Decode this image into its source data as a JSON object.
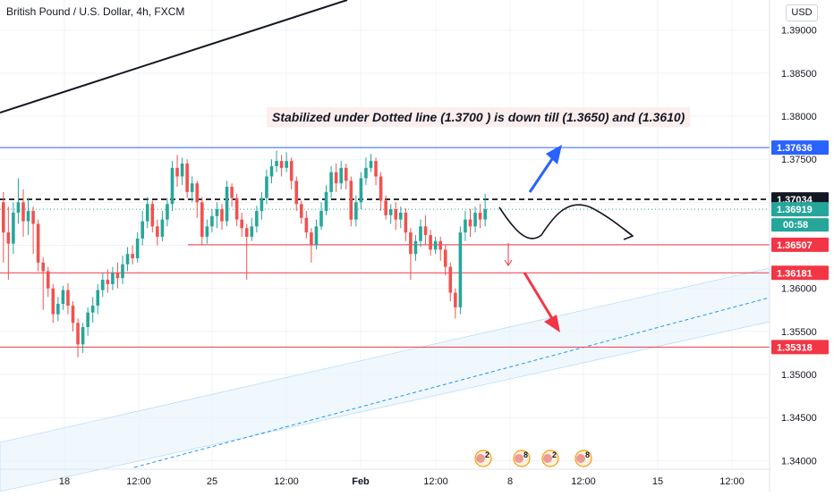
{
  "header": {
    "title": "British Pound / U.S. Dollar, 4h, FXCM",
    "currency_button": "USD"
  },
  "annotation": {
    "text": "Stabilized under Dotted line (1.3700 ) is down till (1.3650) and (1.3610)"
  },
  "colors": {
    "up": "#26a69a",
    "down": "#ef5350",
    "resistance": "#2962ff",
    "support": "#f23645",
    "arrow_blue": "#2962ff",
    "arrow_red": "#f23645",
    "channel": "#e3f2fd"
  },
  "chart_data": {
    "type": "candlestick",
    "y_axis": {
      "min": 1.339,
      "max": 1.3935,
      "ticks": [
        "1.39000",
        "1.38500",
        "1.38000",
        "1.37500",
        "1.37000",
        "1.36500",
        "1.36000",
        "1.35500",
        "1.35000",
        "1.34500",
        "1.34000"
      ]
    },
    "x_axis": {
      "ticks": [
        "18",
        "12:00",
        "25",
        "12:00",
        "Feb",
        "12:00",
        "8",
        "12:00",
        "15",
        "12:00"
      ]
    },
    "price_labels": [
      {
        "value": 1.37636,
        "text": "1.37636",
        "kind": "resistance"
      },
      {
        "value": 1.37034,
        "text": "1.37034",
        "kind": "dashed"
      },
      {
        "value": 1.36919,
        "text": "1.36919",
        "kind": "last"
      },
      {
        "value": 1.36507,
        "text": "1.36507",
        "kind": "support"
      },
      {
        "value": 1.36181,
        "text": "1.36181",
        "kind": "support"
      },
      {
        "value": 1.35318,
        "text": "1.35318",
        "kind": "support"
      }
    ],
    "countdown": "00:58",
    "horizontal_lines": [
      {
        "value": 1.37636,
        "style": "solid",
        "color": "blue"
      },
      {
        "value": 1.37034,
        "style": "dashed",
        "color": "black"
      },
      {
        "value": 1.36507,
        "style": "solid",
        "color": "red"
      },
      {
        "value": 1.36181,
        "style": "solid",
        "color": "red"
      },
      {
        "value": 1.35318,
        "style": "solid",
        "color": "red"
      }
    ],
    "candles": [
      [
        1.37,
        1.3665,
        1.363,
        1.3712
      ],
      [
        1.3665,
        1.3652,
        1.361,
        1.3695
      ],
      [
        1.3652,
        1.3688,
        1.364,
        1.37
      ],
      [
        1.3688,
        1.37,
        1.3675,
        1.3728
      ],
      [
        1.37,
        1.3678,
        1.366,
        1.3715
      ],
      [
        1.3678,
        1.369,
        1.3662,
        1.3705
      ],
      [
        1.369,
        1.3675,
        1.364,
        1.3695
      ],
      [
        1.3675,
        1.363,
        1.362,
        1.368
      ],
      [
        1.363,
        1.362,
        1.3575,
        1.3636
      ],
      [
        1.362,
        1.36,
        1.359,
        1.3625
      ],
      [
        1.36,
        1.357,
        1.356,
        1.3605
      ],
      [
        1.357,
        1.3582,
        1.3562,
        1.359
      ],
      [
        1.3582,
        1.3598,
        1.3575,
        1.3603
      ],
      [
        1.3598,
        1.358,
        1.357,
        1.3606
      ],
      [
        1.358,
        1.356,
        1.355,
        1.3585
      ],
      [
        1.356,
        1.3535,
        1.352,
        1.3565
      ],
      [
        1.3535,
        1.3555,
        1.3525,
        1.356
      ],
      [
        1.3555,
        1.3572,
        1.3545,
        1.3578
      ],
      [
        1.3572,
        1.358,
        1.356,
        1.359
      ],
      [
        1.358,
        1.3598,
        1.357,
        1.3605
      ],
      [
        1.3598,
        1.361,
        1.359,
        1.3618
      ],
      [
        1.361,
        1.3605,
        1.3595,
        1.3622
      ],
      [
        1.3605,
        1.3618,
        1.3598,
        1.3625
      ],
      [
        1.3618,
        1.3612,
        1.36,
        1.363
      ],
      [
        1.3612,
        1.3628,
        1.3605,
        1.3638
      ],
      [
        1.3628,
        1.364,
        1.362,
        1.3648
      ],
      [
        1.364,
        1.3635,
        1.3628,
        1.365
      ],
      [
        1.3635,
        1.3658,
        1.363,
        1.3665
      ],
      [
        1.3658,
        1.3678,
        1.365,
        1.369
      ],
      [
        1.3678,
        1.3698,
        1.367,
        1.3706
      ],
      [
        1.3698,
        1.3672,
        1.3665,
        1.3702
      ],
      [
        1.3672,
        1.366,
        1.365,
        1.368
      ],
      [
        1.366,
        1.368,
        1.3655,
        1.369
      ],
      [
        1.368,
        1.3698,
        1.3672,
        1.3705
      ],
      [
        1.3698,
        1.374,
        1.369,
        1.3748
      ],
      [
        1.374,
        1.373,
        1.3718,
        1.3755
      ],
      [
        1.373,
        1.3745,
        1.372,
        1.3752
      ],
      [
        1.3745,
        1.3712,
        1.3705,
        1.375
      ],
      [
        1.3712,
        1.3722,
        1.37,
        1.373
      ],
      [
        1.3722,
        1.37,
        1.3682,
        1.3725
      ],
      [
        1.37,
        1.366,
        1.365,
        1.3706
      ],
      [
        1.366,
        1.3672,
        1.3652,
        1.368
      ],
      [
        1.3672,
        1.3684,
        1.3665,
        1.3692
      ],
      [
        1.3684,
        1.3692,
        1.367,
        1.37
      ],
      [
        1.3692,
        1.3678,
        1.3668,
        1.3698
      ],
      [
        1.3678,
        1.3718,
        1.3672,
        1.3725
      ],
      [
        1.3718,
        1.3705,
        1.3695,
        1.3722
      ],
      [
        1.3705,
        1.368,
        1.3672,
        1.371
      ],
      [
        1.368,
        1.367,
        1.366,
        1.3688
      ],
      [
        1.367,
        1.366,
        1.361,
        1.3675
      ],
      [
        1.366,
        1.3672,
        1.3655,
        1.3682
      ],
      [
        1.3672,
        1.369,
        1.3665,
        1.3696
      ],
      [
        1.369,
        1.3705,
        1.368,
        1.3712
      ],
      [
        1.3705,
        1.373,
        1.3698,
        1.3738
      ],
      [
        1.373,
        1.3742,
        1.3722,
        1.375
      ],
      [
        1.3742,
        1.3748,
        1.3735,
        1.376
      ],
      [
        1.3748,
        1.374,
        1.373,
        1.3755
      ],
      [
        1.374,
        1.3748,
        1.3735,
        1.3758
      ],
      [
        1.3748,
        1.3725,
        1.3715,
        1.3752
      ],
      [
        1.3725,
        1.3698,
        1.369,
        1.373
      ],
      [
        1.3698,
        1.3682,
        1.3675,
        1.3702
      ],
      [
        1.3682,
        1.3665,
        1.3658,
        1.369
      ],
      [
        1.3665,
        1.365,
        1.363,
        1.367
      ],
      [
        1.365,
        1.3672,
        1.3645,
        1.368
      ],
      [
        1.3672,
        1.369,
        1.3668,
        1.37
      ],
      [
        1.369,
        1.3712,
        1.3685,
        1.372
      ],
      [
        1.3712,
        1.3735,
        1.3705,
        1.3742
      ],
      [
        1.3735,
        1.3722,
        1.3712,
        1.3745
      ],
      [
        1.3722,
        1.374,
        1.3715,
        1.3748
      ],
      [
        1.374,
        1.3725,
        1.3715,
        1.3745
      ],
      [
        1.3725,
        1.368,
        1.3672,
        1.373
      ],
      [
        1.368,
        1.37,
        1.3672,
        1.3708
      ],
      [
        1.37,
        1.3728,
        1.3692,
        1.3735
      ],
      [
        1.3728,
        1.374,
        1.372,
        1.3752
      ],
      [
        1.374,
        1.3748,
        1.3735,
        1.3756
      ],
      [
        1.3748,
        1.373,
        1.372,
        1.3752
      ],
      [
        1.373,
        1.3702,
        1.369,
        1.3735
      ],
      [
        1.3702,
        1.3685,
        1.368,
        1.3708
      ],
      [
        1.3685,
        1.3692,
        1.3675,
        1.3698
      ],
      [
        1.3692,
        1.368,
        1.3668,
        1.37
      ],
      [
        1.368,
        1.3688,
        1.367,
        1.3695
      ],
      [
        1.3688,
        1.3665,
        1.3655,
        1.3693
      ],
      [
        1.3665,
        1.364,
        1.361,
        1.367
      ],
      [
        1.364,
        1.3655,
        1.3632,
        1.3662
      ],
      [
        1.3655,
        1.3672,
        1.3648,
        1.368
      ],
      [
        1.3672,
        1.3662,
        1.365,
        1.3685
      ],
      [
        1.3662,
        1.3645,
        1.3638,
        1.3668
      ],
      [
        1.3645,
        1.3655,
        1.364,
        1.366
      ],
      [
        1.3655,
        1.3645,
        1.3632,
        1.366
      ],
      [
        1.3645,
        1.3625,
        1.3615,
        1.365
      ],
      [
        1.3625,
        1.3595,
        1.3585,
        1.363
      ],
      [
        1.3595,
        1.3578,
        1.3565,
        1.36
      ],
      [
        1.3578,
        1.3665,
        1.357,
        1.3672
      ],
      [
        1.3665,
        1.368,
        1.3655,
        1.369
      ],
      [
        1.368,
        1.3672,
        1.366,
        1.3692
      ],
      [
        1.3672,
        1.3688,
        1.3665,
        1.3695
      ],
      [
        1.3688,
        1.368,
        1.367,
        1.3698
      ],
      [
        1.368,
        1.3692,
        1.3672,
        1.371
      ]
    ]
  },
  "events": {
    "labels": [
      "2",
      "8",
      "2",
      "8"
    ]
  }
}
